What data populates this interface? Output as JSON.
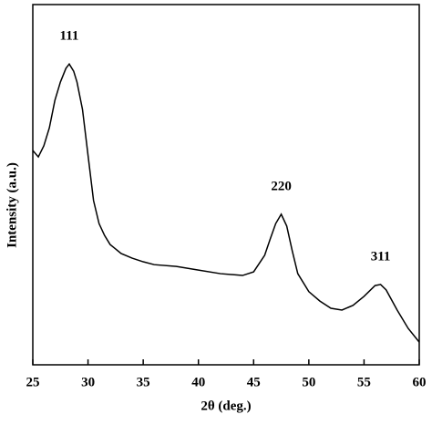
{
  "chart_data": {
    "type": "line",
    "x_label": "2θ (deg.)",
    "y_label": "Intensity (a.u.)",
    "x": [
      25,
      25.5,
      26,
      26.5,
      27,
      27.5,
      28,
      28.3,
      28.7,
      29,
      29.5,
      30,
      30.5,
      31,
      31.5,
      32,
      33,
      34,
      35,
      36,
      38,
      40,
      42,
      44,
      45,
      46,
      46.5,
      47,
      47.5,
      48,
      48.5,
      49,
      50,
      51,
      52,
      53,
      54,
      55,
      56,
      56.5,
      57,
      58,
      59,
      60
    ],
    "series": [
      {
        "color": "#000000",
        "values": [
          59.5,
          57.7,
          60.8,
          65.8,
          73.4,
          78.5,
          82.3,
          83.5,
          81.5,
          78.5,
          70.9,
          58.2,
          45.6,
          39.2,
          35.9,
          33.4,
          30.9,
          29.6,
          28.6,
          27.8,
          27.3,
          26.3,
          25.3,
          24.8,
          25.8,
          30.4,
          34.9,
          39.2,
          41.8,
          38.5,
          31.6,
          25.3,
          20.3,
          17.7,
          15.7,
          15.2,
          16.5,
          19.0,
          22.0,
          22.3,
          20.8,
          15.2,
          10.1,
          6.3
        ]
      }
    ],
    "annotations": [
      {
        "text": "111",
        "x": 28.3
      },
      {
        "text": "220",
        "x": 47.5
      },
      {
        "text": "311",
        "x": 56.5
      }
    ],
    "xlim": [
      25,
      60
    ],
    "xticks": [
      25,
      30,
      35,
      40,
      45,
      50,
      55,
      60
    ],
    "ylim": [
      0,
      100
    ]
  }
}
